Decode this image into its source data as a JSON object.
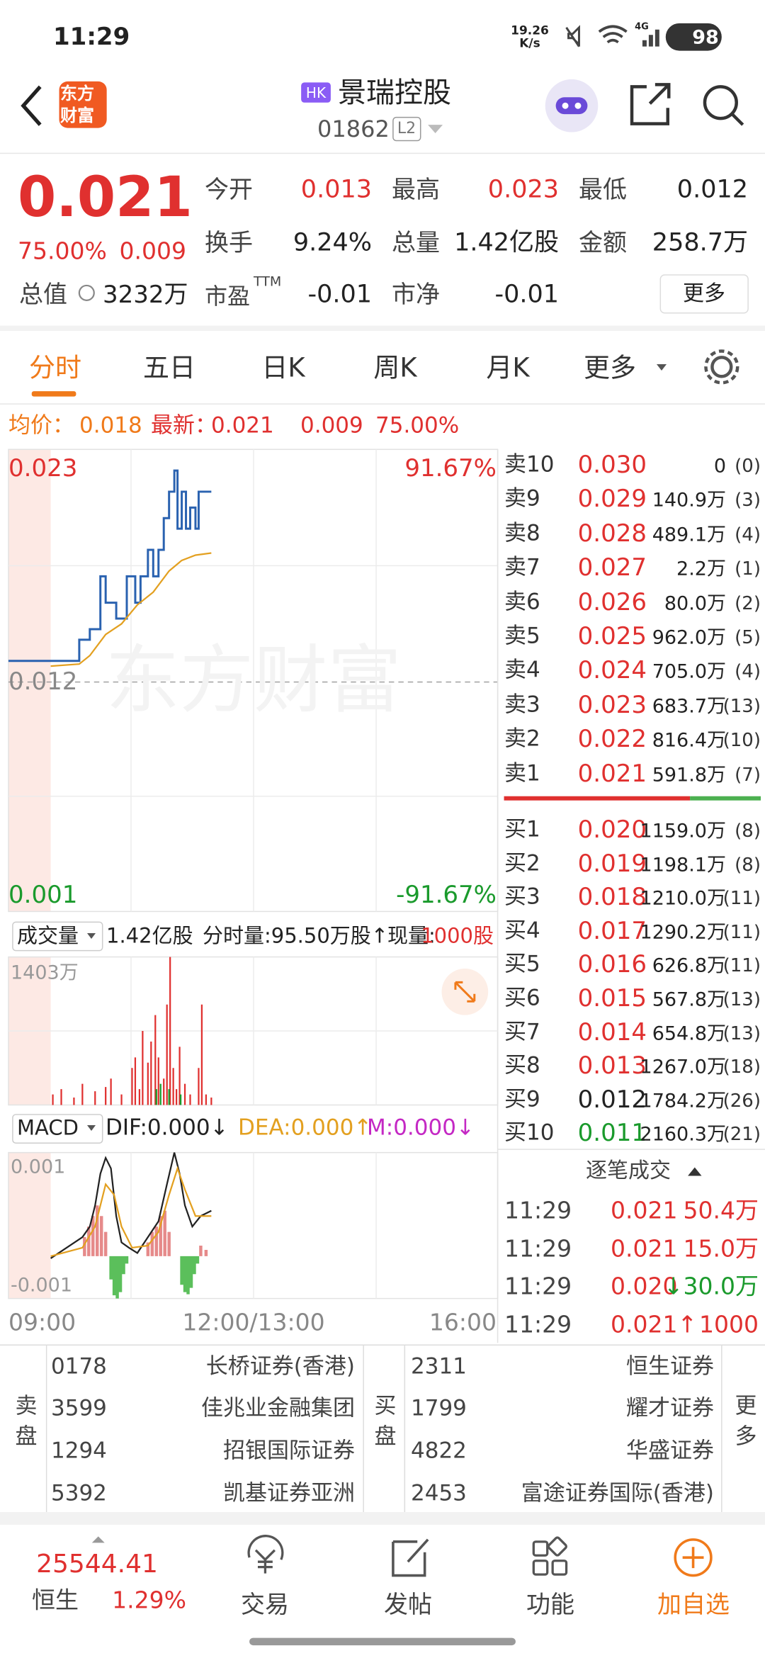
{
  "status_bar": {
    "time": "11:29",
    "net_speed": "19.26",
    "net_unit": "K/s",
    "network": "4G",
    "battery": "98"
  },
  "header": {
    "logo_top": "东方",
    "logo_bottom": "财富",
    "market": "HK",
    "name": "景瑞控股",
    "code": "01862",
    "level": "L2"
  },
  "quote": {
    "price": "0.021",
    "change_pct": "75.00%",
    "change": "0.009",
    "fields": [
      {
        "label": "今开",
        "value": "0.013",
        "color": "red"
      },
      {
        "label": "最高",
        "value": "0.023",
        "color": "red"
      },
      {
        "label": "最低",
        "value": "0.012",
        "color": "black"
      },
      {
        "label": "换手",
        "value": "9.24%",
        "color": "black"
      },
      {
        "label": "总量",
        "value": "1.42亿股",
        "color": "black"
      },
      {
        "label": "金额",
        "value": "258.7万",
        "color": "black"
      }
    ],
    "total_value": {
      "label": "总值",
      "value": "3232万"
    },
    "pe": {
      "label": "市盈",
      "sup": "TTM",
      "value": "-0.01"
    },
    "pb": {
      "label": "市净",
      "value": "-0.01"
    },
    "more": "更多"
  },
  "tabs": [
    "分时",
    "五日",
    "日K",
    "周K",
    "月K",
    "更多"
  ],
  "info": {
    "avg_label": "均价：",
    "avg": "0.018",
    "last_label": "最新：",
    "last": "0.021",
    "change": "0.009",
    "change_pct": "75.00%"
  },
  "chart": {
    "high": "0.023",
    "high_pct": "91.67%",
    "prev_close": "0.012",
    "low": "0.001",
    "low_pct": "-91.67%"
  },
  "volume": {
    "selector": "成交量",
    "total": "1.42亿股",
    "minute": "分时量:95.50万股↑",
    "current_label": "现量:",
    "current": "1000股",
    "max_label": "1403万"
  },
  "macd": {
    "selector": "MACD",
    "dif": "DIF:0.000↓",
    "dea": "DEA:0.000↑",
    "m": "M:0.000↓",
    "top": "0.001",
    "bottom": "-0.001"
  },
  "time_axis": [
    "09:00",
    "12:00/13:00",
    "16:00"
  ],
  "order_book": {
    "asks": [
      {
        "label": "卖10",
        "price": "0.030",
        "volume": "0",
        "count": "(0)",
        "color": "red"
      },
      {
        "label": "卖9",
        "price": "0.029",
        "volume": "140.9万",
        "count": "(3)",
        "color": "red"
      },
      {
        "label": "卖8",
        "price": "0.028",
        "volume": "489.1万",
        "count": "(4)",
        "color": "red"
      },
      {
        "label": "卖7",
        "price": "0.027",
        "volume": "2.2万",
        "count": "(1)",
        "color": "red"
      },
      {
        "label": "卖6",
        "price": "0.026",
        "volume": "80.0万",
        "count": "(2)",
        "color": "red"
      },
      {
        "label": "卖5",
        "price": "0.025",
        "volume": "962.0万",
        "count": "(5)",
        "color": "red"
      },
      {
        "label": "卖4",
        "price": "0.024",
        "volume": "705.0万",
        "count": "(4)",
        "color": "red"
      },
      {
        "label": "卖3",
        "price": "0.023",
        "volume": "683.7万",
        "count": "(13)",
        "color": "red"
      },
      {
        "label": "卖2",
        "price": "0.022",
        "volume": "816.4万",
        "count": "(10)",
        "color": "red"
      },
      {
        "label": "卖1",
        "price": "0.021",
        "volume": "591.8万",
        "count": "(7)",
        "color": "red"
      }
    ],
    "bids": [
      {
        "label": "买1",
        "price": "0.020",
        "volume": "1159.0万",
        "count": "(8)",
        "color": "red"
      },
      {
        "label": "买2",
        "price": "0.019",
        "volume": "1198.1万",
        "count": "(8)",
        "color": "red"
      },
      {
        "label": "买3",
        "price": "0.018",
        "volume": "1210.0万",
        "count": "(11)",
        "color": "red"
      },
      {
        "label": "买4",
        "price": "0.017",
        "volume": "1290.2万",
        "count": "(11)",
        "color": "red"
      },
      {
        "label": "买5",
        "price": "0.016",
        "volume": "626.8万",
        "count": "(11)",
        "color": "red"
      },
      {
        "label": "买6",
        "price": "0.015",
        "volume": "567.8万",
        "count": "(13)",
        "color": "red"
      },
      {
        "label": "买7",
        "price": "0.014",
        "volume": "654.8万",
        "count": "(13)",
        "color": "red"
      },
      {
        "label": "买8",
        "price": "0.013",
        "volume": "1267.0万",
        "count": "(18)",
        "color": "red"
      },
      {
        "label": "买9",
        "price": "0.012",
        "volume": "1784.2万",
        "count": "(26)",
        "color": "black"
      },
      {
        "label": "买10",
        "price": "0.011",
        "volume": "2160.3万",
        "count": "(21)",
        "color": "green"
      }
    ]
  },
  "trades": {
    "title": "逐笔成交",
    "rows": [
      {
        "time": "11:29",
        "price": "0.021",
        "volume": "50.4万",
        "price_color": "red",
        "volume_color": "red"
      },
      {
        "time": "11:29",
        "price": "0.021",
        "volume": "15.0万",
        "price_color": "red",
        "volume_color": "red"
      },
      {
        "time": "11:29",
        "price": "0.020",
        "volume": "↓30.0万",
        "price_color": "red",
        "volume_color": "green"
      },
      {
        "time": "11:29",
        "price": "0.021↑",
        "volume": "1000",
        "price_color": "red",
        "volume_color": "red"
      }
    ]
  },
  "brokers": {
    "sell_label": "卖盘",
    "sell": [
      {
        "id": "0178",
        "name": "长桥证券(香港)"
      },
      {
        "id": "3599",
        "name": "佳兆业金融集团"
      },
      {
        "id": "1294",
        "name": "招银国际证券"
      },
      {
        "id": "5392",
        "name": "凯基证券亚洲"
      }
    ],
    "buy_label": "买盘",
    "buy": [
      {
        "id": "2311",
        "name": "恒生证券"
      },
      {
        "id": "1799",
        "name": "耀才证券"
      },
      {
        "id": "4822",
        "name": "华盛证券"
      },
      {
        "id": "2453",
        "name": "富途证券国际(香港)"
      }
    ],
    "more": "更多"
  },
  "bottom_nav": {
    "index_value": "25544.41",
    "index_name": "恒生",
    "index_change": "1.29%",
    "items": [
      "交易",
      "发帖",
      "功能",
      "加自选"
    ]
  }
}
